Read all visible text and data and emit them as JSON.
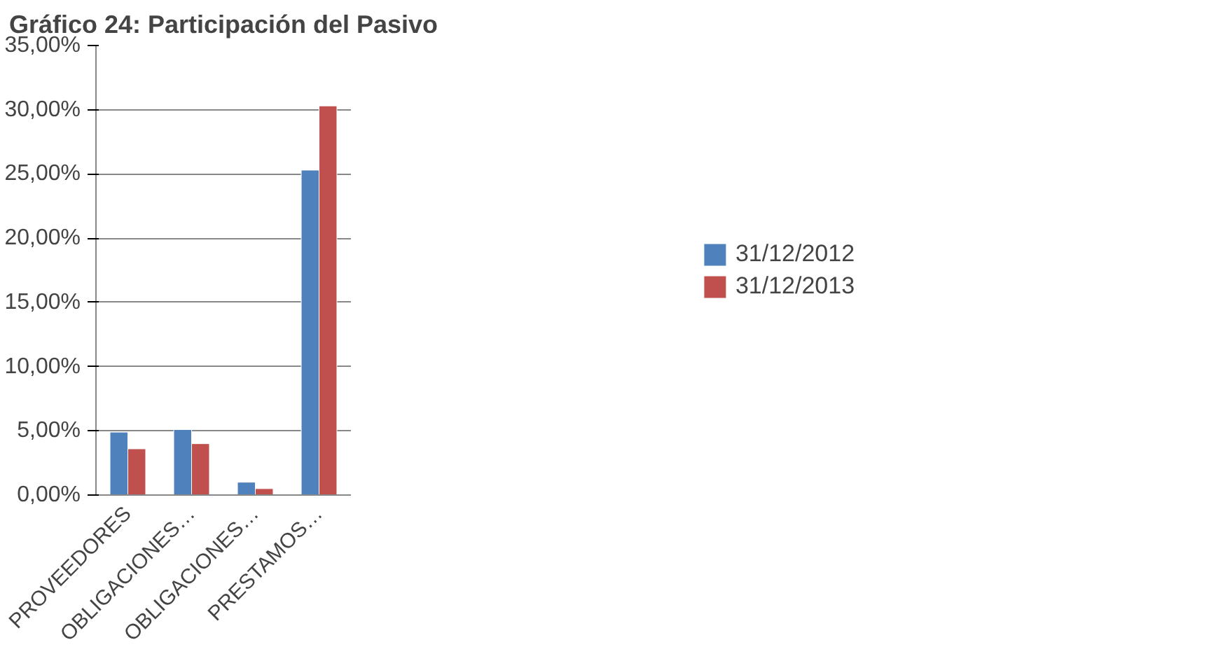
{
  "chart_data": {
    "type": "bar",
    "title": "Gráfico 24: Participación del Pasivo",
    "categories": [
      "PROVEEDORES",
      "OBLIGACIONES…",
      "OBLIGACIONES…",
      "PRESTAMOS…"
    ],
    "series": [
      {
        "name": "31/12/2012",
        "color": "#4f81bd",
        "values": [
          4.9,
          5.1,
          1.0,
          25.3
        ]
      },
      {
        "name": "31/12/2013",
        "color": "#c0504d",
        "values": [
          3.6,
          4.0,
          0.5,
          30.3
        ]
      }
    ],
    "ylim": [
      0,
      35
    ],
    "yticks": [
      {
        "value": 0,
        "label": "0,00%"
      },
      {
        "value": 5,
        "label": "5,00%"
      },
      {
        "value": 10,
        "label": "10,00%"
      },
      {
        "value": 15,
        "label": "15,00%"
      },
      {
        "value": 20,
        "label": "20,00%"
      },
      {
        "value": 25,
        "label": "25,00%"
      },
      {
        "value": 30,
        "label": "30,00%"
      },
      {
        "value": 35,
        "label": "35,00%"
      }
    ],
    "grid": "y",
    "legend": "right"
  }
}
